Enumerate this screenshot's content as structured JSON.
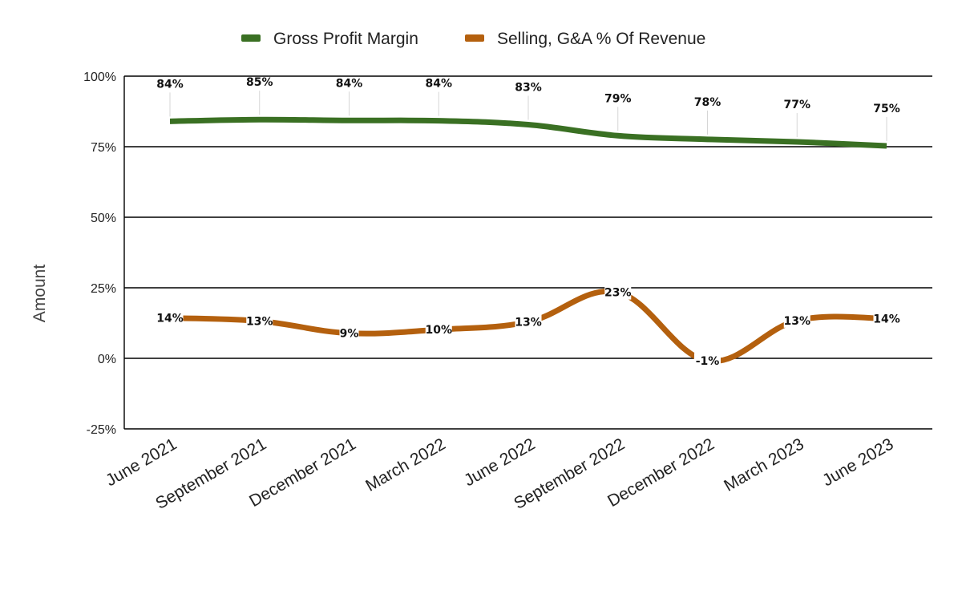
{
  "chart_data": {
    "type": "line",
    "categories": [
      "June 2021",
      "September 2021",
      "December 2021",
      "March 2022",
      "June 2022",
      "September 2022",
      "December 2022",
      "March 2023",
      "June 2023"
    ],
    "series": [
      {
        "name": "Gross Profit Margin",
        "color": "#3a7023",
        "values": [
          84,
          84.6,
          84.3,
          84.2,
          82.8,
          78.9,
          77.6,
          76.7,
          75.3
        ],
        "labels": [
          "84%",
          "85%",
          "84%",
          "84%",
          "83%",
          "79%",
          "78%",
          "77%",
          "75%"
        ]
      },
      {
        "name": "Selling, G&A % Of Revenue",
        "color": "#b4600e",
        "values": [
          14.3,
          13.2,
          8.9,
          10.2,
          12.9,
          23.4,
          -0.9,
          13.4,
          14.1
        ],
        "labels": [
          "14%",
          "13%",
          "9%",
          "10%",
          "13%",
          "23%",
          "-1%",
          "13%",
          "14%"
        ]
      }
    ],
    "ylabel": "Amount",
    "ylim": [
      -25,
      100
    ],
    "yticks": [
      "-25%",
      "0%",
      "25%",
      "50%",
      "75%",
      "100%"
    ],
    "grid": true,
    "legend_position": "top-center",
    "curve": "smooth"
  }
}
